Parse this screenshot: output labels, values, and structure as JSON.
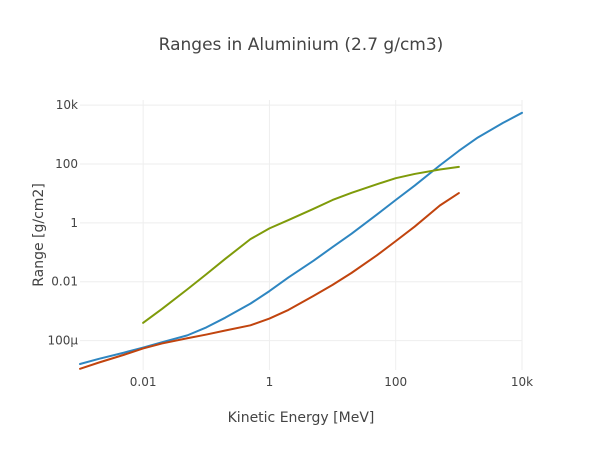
{
  "chart_data": {
    "type": "line",
    "title": "Ranges in Aluminium (2.7 g/cm3)",
    "xlabel": "Kinetic Energy [MeV]",
    "ylabel": "Range [g/cm2]",
    "x_scale": "log",
    "y_scale": "log",
    "xlim": [
      0.001,
      10000
    ],
    "ylim": [
      1e-05,
      15000
    ],
    "grid": true,
    "legend": "none",
    "x_ticks": [
      {
        "value": 0.01,
        "label": "0.01"
      },
      {
        "value": 1,
        "label": "1"
      },
      {
        "value": 100,
        "label": "100"
      },
      {
        "value": 10000,
        "label": "10k"
      }
    ],
    "y_ticks": [
      {
        "value": 0.0001,
        "label": "100μ"
      },
      {
        "value": 0.01,
        "label": "0.01"
      },
      {
        "value": 1,
        "label": "1"
      },
      {
        "value": 100,
        "label": "100"
      },
      {
        "value": 10000,
        "label": "10k"
      }
    ],
    "series": [
      {
        "color": "#2e86c1",
        "x": [
          0.001,
          0.002,
          0.005,
          0.01,
          0.02,
          0.05,
          0.1,
          0.2,
          0.5,
          1,
          2,
          5,
          10,
          20,
          50,
          100,
          200,
          500,
          1000,
          2000,
          5000,
          10000
        ],
        "y": [
          1.6e-05,
          2.4e-05,
          3.9e-05,
          5.8e-05,
          8.8e-05,
          0.00015,
          0.00028,
          0.0006,
          0.0018,
          0.0048,
          0.014,
          0.052,
          0.15,
          0.43,
          1.9,
          6.0,
          18.5,
          90,
          280,
          800,
          2500,
          5500
        ]
      },
      {
        "color": "#c1440e",
        "x": [
          0.001,
          0.002,
          0.005,
          0.01,
          0.02,
          0.05,
          0.1,
          0.2,
          0.5,
          1,
          2,
          5,
          10,
          20,
          50,
          100,
          200,
          500,
          1000
        ],
        "y": [
          1.1e-05,
          1.8e-05,
          3.3e-05,
          5.4e-05,
          8e-05,
          0.00012,
          0.00016,
          0.00022,
          0.00033,
          0.00056,
          0.0011,
          0.0033,
          0.0078,
          0.02,
          0.078,
          0.24,
          0.75,
          3.9,
          10.3
        ]
      },
      {
        "color": "#7f9b0a",
        "x": [
          0.01,
          0.02,
          0.05,
          0.1,
          0.2,
          0.5,
          1,
          2,
          5,
          10,
          20,
          50,
          100,
          200,
          500,
          1000
        ],
        "y": [
          0.0004,
          0.0012,
          0.0055,
          0.018,
          0.06,
          0.28,
          0.65,
          1.25,
          3.0,
          6.0,
          10.5,
          20.5,
          33.0,
          46.0,
          65.0,
          80.0
        ]
      }
    ]
  }
}
